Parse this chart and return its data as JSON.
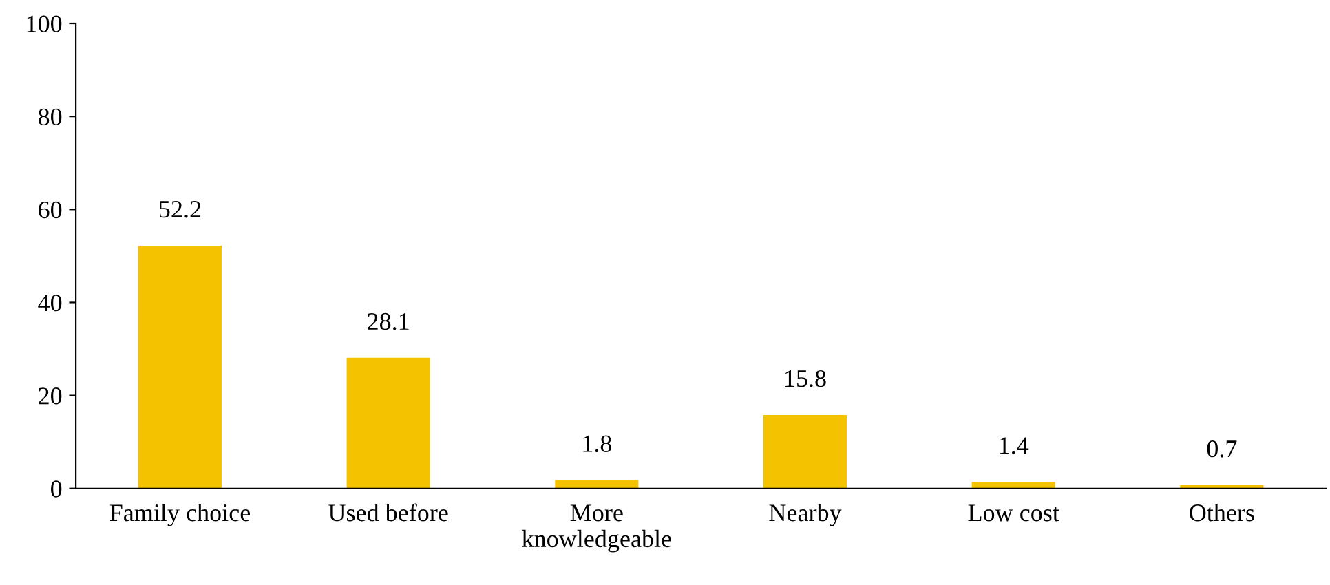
{
  "chart_data": {
    "type": "bar",
    "categories": [
      "Family choice",
      "Used before",
      "More\nknowledgeable",
      "Nearby",
      "Low cost",
      "Others"
    ],
    "values": [
      52.2,
      28.1,
      1.8,
      15.8,
      1.4,
      0.7
    ],
    "color": "#f5c200",
    "ylim": [
      0,
      100
    ],
    "yticks": [
      0,
      20,
      40,
      60,
      80,
      100
    ],
    "data_labels": true,
    "grid": false,
    "legend": false
  }
}
